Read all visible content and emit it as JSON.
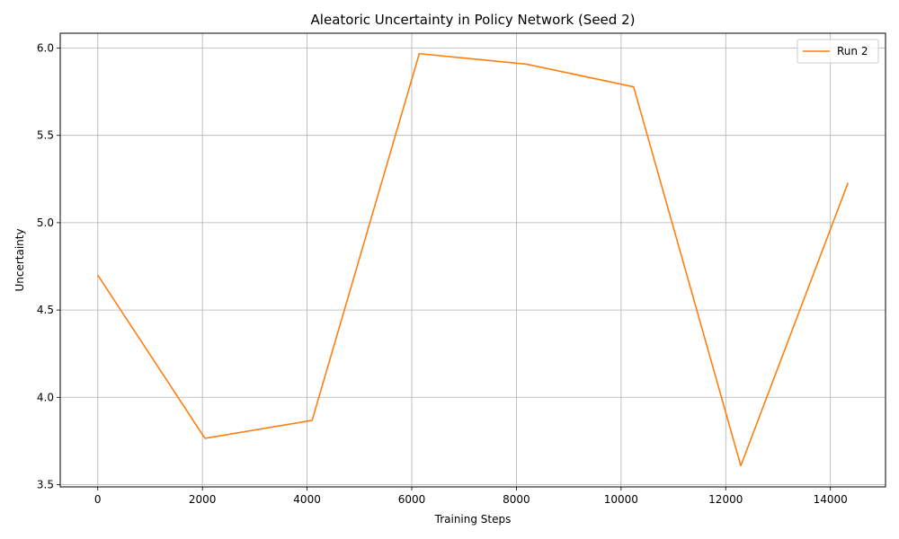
{
  "chart_data": {
    "type": "line",
    "title": "Aleatoric Uncertainty in Policy Network (Seed 2)",
    "xlabel": "Training Steps",
    "ylabel": "Uncertainty",
    "xlim": [
      -717,
      15053
    ],
    "ylim": [
      3.487,
      6.085
    ],
    "x_ticks": [
      0,
      2000,
      4000,
      6000,
      8000,
      10000,
      12000,
      14000
    ],
    "y_ticks": [
      3.5,
      4.0,
      4.5,
      5.0,
      5.5,
      6.0
    ],
    "x_tick_labels": [
      "0",
      "2000",
      "4000",
      "6000",
      "8000",
      "10000",
      "12000",
      "14000"
    ],
    "y_tick_labels": [
      "3.5",
      "4.0",
      "4.5",
      "5.0",
      "5.5",
      "6.0"
    ],
    "grid": true,
    "legend_position": "top-right",
    "series": [
      {
        "name": "Run 2",
        "color": "#ff7f0e",
        "x": [
          0,
          2048,
          4096,
          6144,
          8192,
          10240,
          12288,
          14336
        ],
        "y": [
          4.7,
          3.765,
          3.868,
          5.968,
          5.908,
          5.778,
          3.608,
          5.228
        ]
      }
    ]
  }
}
